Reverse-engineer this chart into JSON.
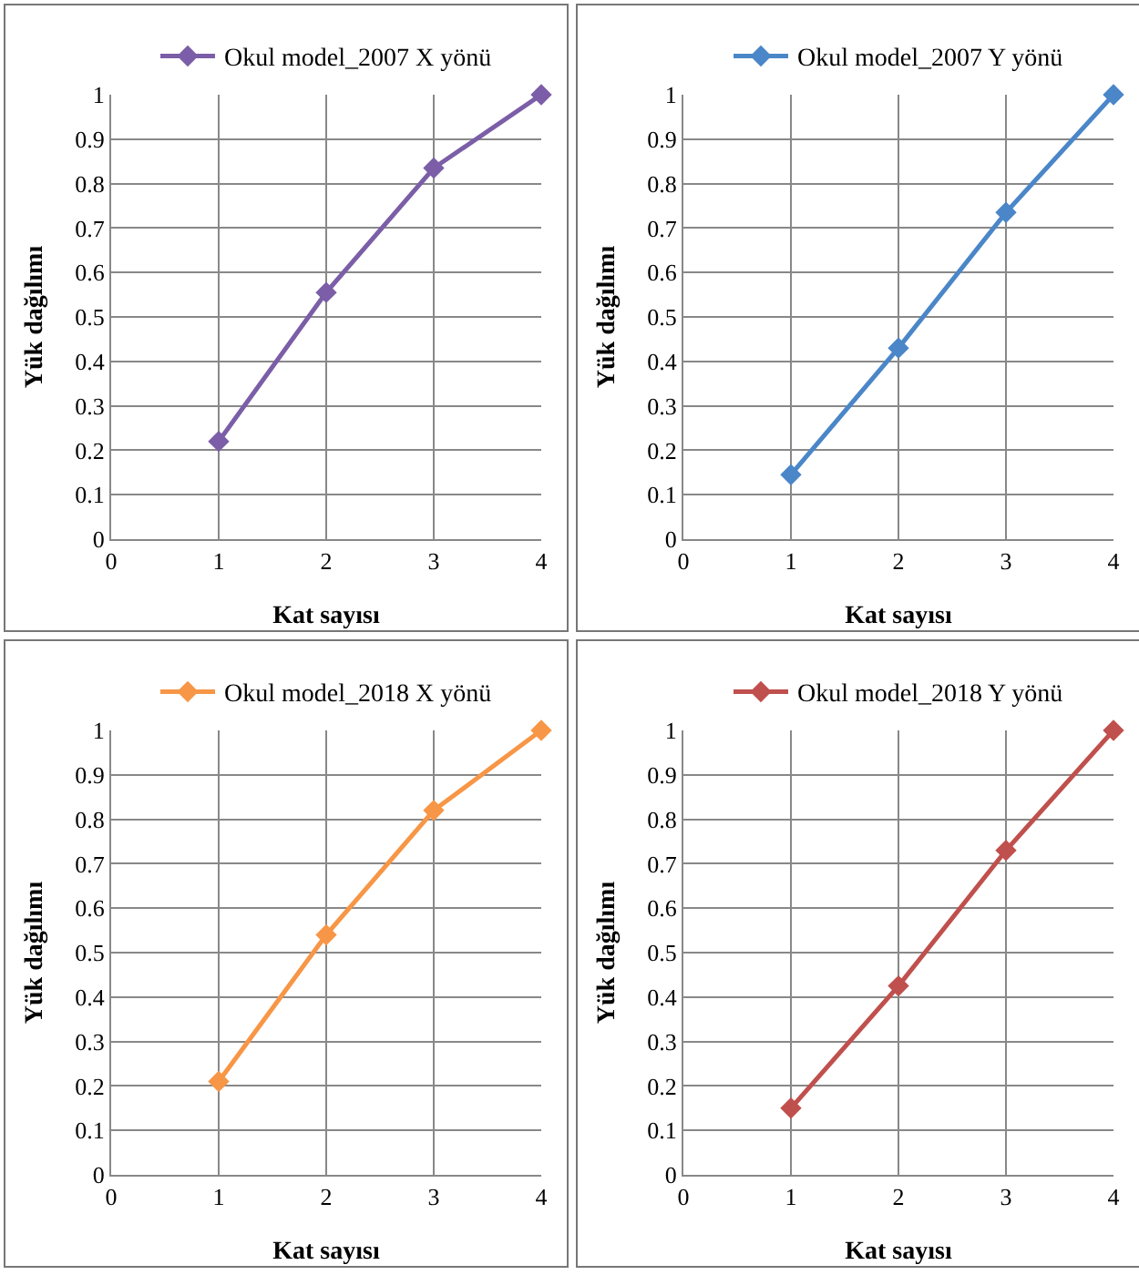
{
  "chart_data": [
    {
      "type": "line",
      "xlabel": "Kat sayısı",
      "ylabel": "Yük dağılımı",
      "x": [
        1,
        2,
        3,
        4
      ],
      "series": [
        {
          "name": "Okul model_2007 X yönü",
          "color": "#7b5ea7",
          "values": [
            0.22,
            0.555,
            0.835,
            1
          ]
        }
      ],
      "xlim": [
        0,
        4
      ],
      "ylim": [
        0,
        1
      ],
      "xticks": [
        0,
        1,
        2,
        3,
        4
      ],
      "yticks": [
        0,
        0.1,
        0.2,
        0.3,
        0.4,
        0.5,
        0.6,
        0.7,
        0.8,
        0.9,
        1
      ],
      "grid": true,
      "legend": "top",
      "marker": "diamond",
      "line_style": "solid"
    },
    {
      "type": "line",
      "xlabel": "Kat sayısı",
      "ylabel": "Yük dağılımı",
      "x": [
        1,
        2,
        3,
        4
      ],
      "series": [
        {
          "name": "Okul model_2007 Y yönü",
          "color": "#4a86c8",
          "values": [
            0.145,
            0.43,
            0.735,
            1
          ]
        }
      ],
      "xlim": [
        0,
        4
      ],
      "ylim": [
        0,
        1
      ],
      "xticks": [
        0,
        1,
        2,
        3,
        4
      ],
      "yticks": [
        0,
        0.1,
        0.2,
        0.3,
        0.4,
        0.5,
        0.6,
        0.7,
        0.8,
        0.9,
        1
      ],
      "grid": true,
      "legend": "top",
      "marker": "diamond",
      "line_style": "solid"
    },
    {
      "type": "line",
      "xlabel": "Kat sayısı",
      "ylabel": "Yük dağılımı",
      "x": [
        1,
        2,
        3,
        4
      ],
      "series": [
        {
          "name": "Okul model_2018 X yönü",
          "color": "#f79646",
          "values": [
            0.21,
            0.54,
            0.82,
            1
          ]
        }
      ],
      "xlim": [
        0,
        4
      ],
      "ylim": [
        0,
        1
      ],
      "xticks": [
        0,
        1,
        2,
        3,
        4
      ],
      "yticks": [
        0,
        0.1,
        0.2,
        0.3,
        0.4,
        0.5,
        0.6,
        0.7,
        0.8,
        0.9,
        1
      ],
      "grid": true,
      "legend": "top",
      "marker": "diamond",
      "line_style": "solid"
    },
    {
      "type": "line",
      "xlabel": "Kat sayısı",
      "ylabel": "Yük dağılımı",
      "x": [
        1,
        2,
        3,
        4
      ],
      "series": [
        {
          "name": "Okul model_2018 Y yönü",
          "color": "#c0504d",
          "values": [
            0.15,
            0.425,
            0.73,
            1
          ]
        }
      ],
      "xlim": [
        0,
        4
      ],
      "ylim": [
        0,
        1
      ],
      "xticks": [
        0,
        1,
        2,
        3,
        4
      ],
      "yticks": [
        0,
        0.1,
        0.2,
        0.3,
        0.4,
        0.5,
        0.6,
        0.7,
        0.8,
        0.9,
        1
      ],
      "grid": true,
      "legend": "top",
      "marker": "diamond",
      "line_style": "solid"
    }
  ]
}
